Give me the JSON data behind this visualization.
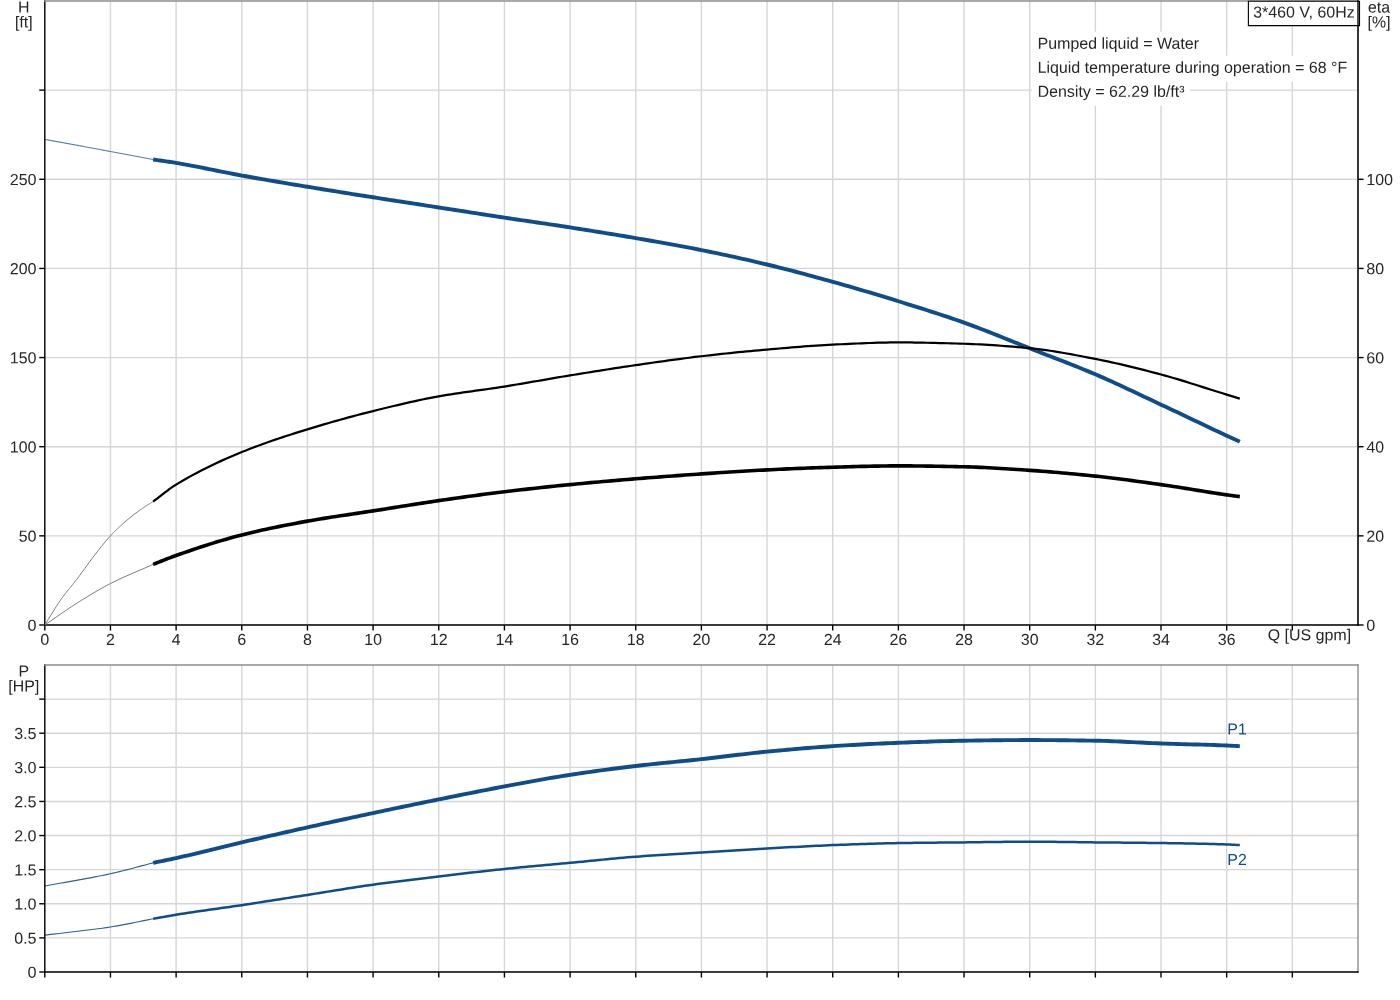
{
  "chart_data": [
    {
      "type": "line",
      "title": "3*460 V, 60Hz",
      "annotations": [
        "Pumped liquid = Water",
        "Liquid temperature during operation = 68 °F",
        "Density = 62.29 lb/ft³"
      ],
      "xlabel": "Q [US gpm]",
      "ylabel": "H\n[ft]",
      "y2label": "eta\n[%]",
      "xlim": [
        0,
        40
      ],
      "xticks": [
        0,
        2,
        4,
        6,
        8,
        10,
        12,
        14,
        16,
        18,
        20,
        22,
        24,
        26,
        28,
        30,
        32,
        34,
        36,
        {
          "value": 38,
          "label": null
        }
      ],
      "ylim": [
        0,
        350
      ],
      "yticks": [
        0,
        50,
        100,
        150,
        200,
        250,
        {
          "value": 300,
          "label": null
        }
      ],
      "y2lim": [
        0,
        140
      ],
      "y2ticks": [
        0,
        20,
        40,
        60,
        80,
        100
      ],
      "grid": true,
      "series": [
        {
          "color": "#5b7da6",
          "x": [
            0,
            1,
            2,
            3.3
          ],
          "values": [
            272.4,
            269,
            265.6,
            261.1
          ]
        },
        {
          "color": "#0f4c8a",
          "x": [
            3.3,
            4,
            6,
            8,
            10,
            12,
            14,
            16,
            18,
            20,
            22,
            24,
            26,
            28,
            30,
            32,
            34,
            36,
            36.4
          ],
          "values": [
            261.1,
            259.2,
            252.1,
            245.8,
            239.9,
            234.2,
            228.5,
            223.0,
            217.0,
            210.3,
            202.2,
            192.5,
            181.6,
            169.6,
            155.2,
            140.6,
            123.6,
            106.2,
            102.8
          ]
        },
        {
          "color": "#777777",
          "axis": "y2",
          "x": [
            0,
            0.5,
            1,
            1.5,
            2,
            2.5,
            3,
            3.3
          ],
          "values": [
            0,
            5.8,
            10.5,
            15.5,
            20.0,
            23.5,
            26.3,
            27.7
          ]
        },
        {
          "color": "#000000",
          "axis": "y2",
          "x": [
            3.3,
            4,
            6,
            8,
            10,
            12,
            14,
            16,
            18,
            20,
            22,
            24,
            26,
            28,
            30,
            32,
            34,
            36,
            36.4
          ],
          "values": [
            27.7,
            31.5,
            38.8,
            43.9,
            48.0,
            51.3,
            53.5,
            56.0,
            58.3,
            60.3,
            61.8,
            62.9,
            63.4,
            63.1,
            62.1,
            59.7,
            56.2,
            51.7,
            50.8
          ]
        },
        {
          "color": "#777777",
          "axis": "y2",
          "x": [
            0,
            1,
            2,
            3.3
          ],
          "values": [
            0,
            5.0,
            9.3,
            13.6
          ]
        },
        {
          "color": "#000000",
          "axis": "y2",
          "x": [
            3.3,
            4,
            6,
            8,
            10,
            12,
            14,
            16,
            18,
            20,
            22,
            24,
            26,
            28,
            30,
            32,
            34,
            36,
            36.4
          ],
          "values": [
            13.6,
            15.6,
            20.2,
            23.3,
            25.6,
            27.9,
            29.9,
            31.5,
            32.8,
            33.9,
            34.8,
            35.4,
            35.7,
            35.5,
            34.7,
            33.4,
            31.5,
            29.2,
            28.8
          ]
        }
      ]
    },
    {
      "type": "line",
      "ylabel": "P\n[HP]",
      "xlim": [
        0,
        40
      ],
      "xticks": [
        0,
        2,
        4,
        6,
        8,
        10,
        12,
        14,
        16,
        18,
        20,
        22,
        24,
        26,
        28,
        30,
        32,
        34,
        36,
        38
      ],
      "ylim": [
        0,
        4.5
      ],
      "yticks": [
        0,
        0.5,
        {
          "value": 1,
          "label": "1.0"
        },
        1.5,
        {
          "value": 2,
          "label": "2.0"
        },
        2.5,
        {
          "value": 3,
          "label": "3.0"
        },
        3.5,
        {
          "value": 4,
          "label": null
        }
      ],
      "tick_labels": "y",
      "grid": true,
      "series": [
        {
          "color": "#2f5f94",
          "x": [
            0,
            2,
            3.3
          ],
          "values": [
            1.26,
            1.44,
            1.6
          ]
        },
        {
          "name": "P1",
          "color": "#0f4c8a",
          "x": [
            3.3,
            4,
            6,
            8,
            10,
            12,
            14,
            16,
            18,
            20,
            22,
            24,
            26,
            28,
            30,
            32,
            34,
            36,
            36.4
          ],
          "values": [
            1.6,
            1.67,
            1.9,
            2.12,
            2.33,
            2.53,
            2.72,
            2.89,
            3.02,
            3.12,
            3.23,
            3.31,
            3.36,
            3.39,
            3.4,
            3.39,
            3.35,
            3.32,
            3.31
          ]
        },
        {
          "color": "#2f5f94",
          "x": [
            0,
            2,
            3.3
          ],
          "values": [
            0.54,
            0.66,
            0.78
          ]
        },
        {
          "name": "P2",
          "color": "#0f4c8a",
          "x": [
            3.3,
            4,
            6,
            8,
            10,
            12,
            14,
            16,
            18,
            20,
            22,
            24,
            26,
            28,
            30,
            32,
            34,
            36,
            36.4
          ],
          "values": [
            0.78,
            0.84,
            0.98,
            1.13,
            1.28,
            1.4,
            1.51,
            1.6,
            1.69,
            1.75,
            1.81,
            1.86,
            1.89,
            1.9,
            1.91,
            1.9,
            1.89,
            1.87,
            1.86
          ]
        }
      ]
    }
  ]
}
